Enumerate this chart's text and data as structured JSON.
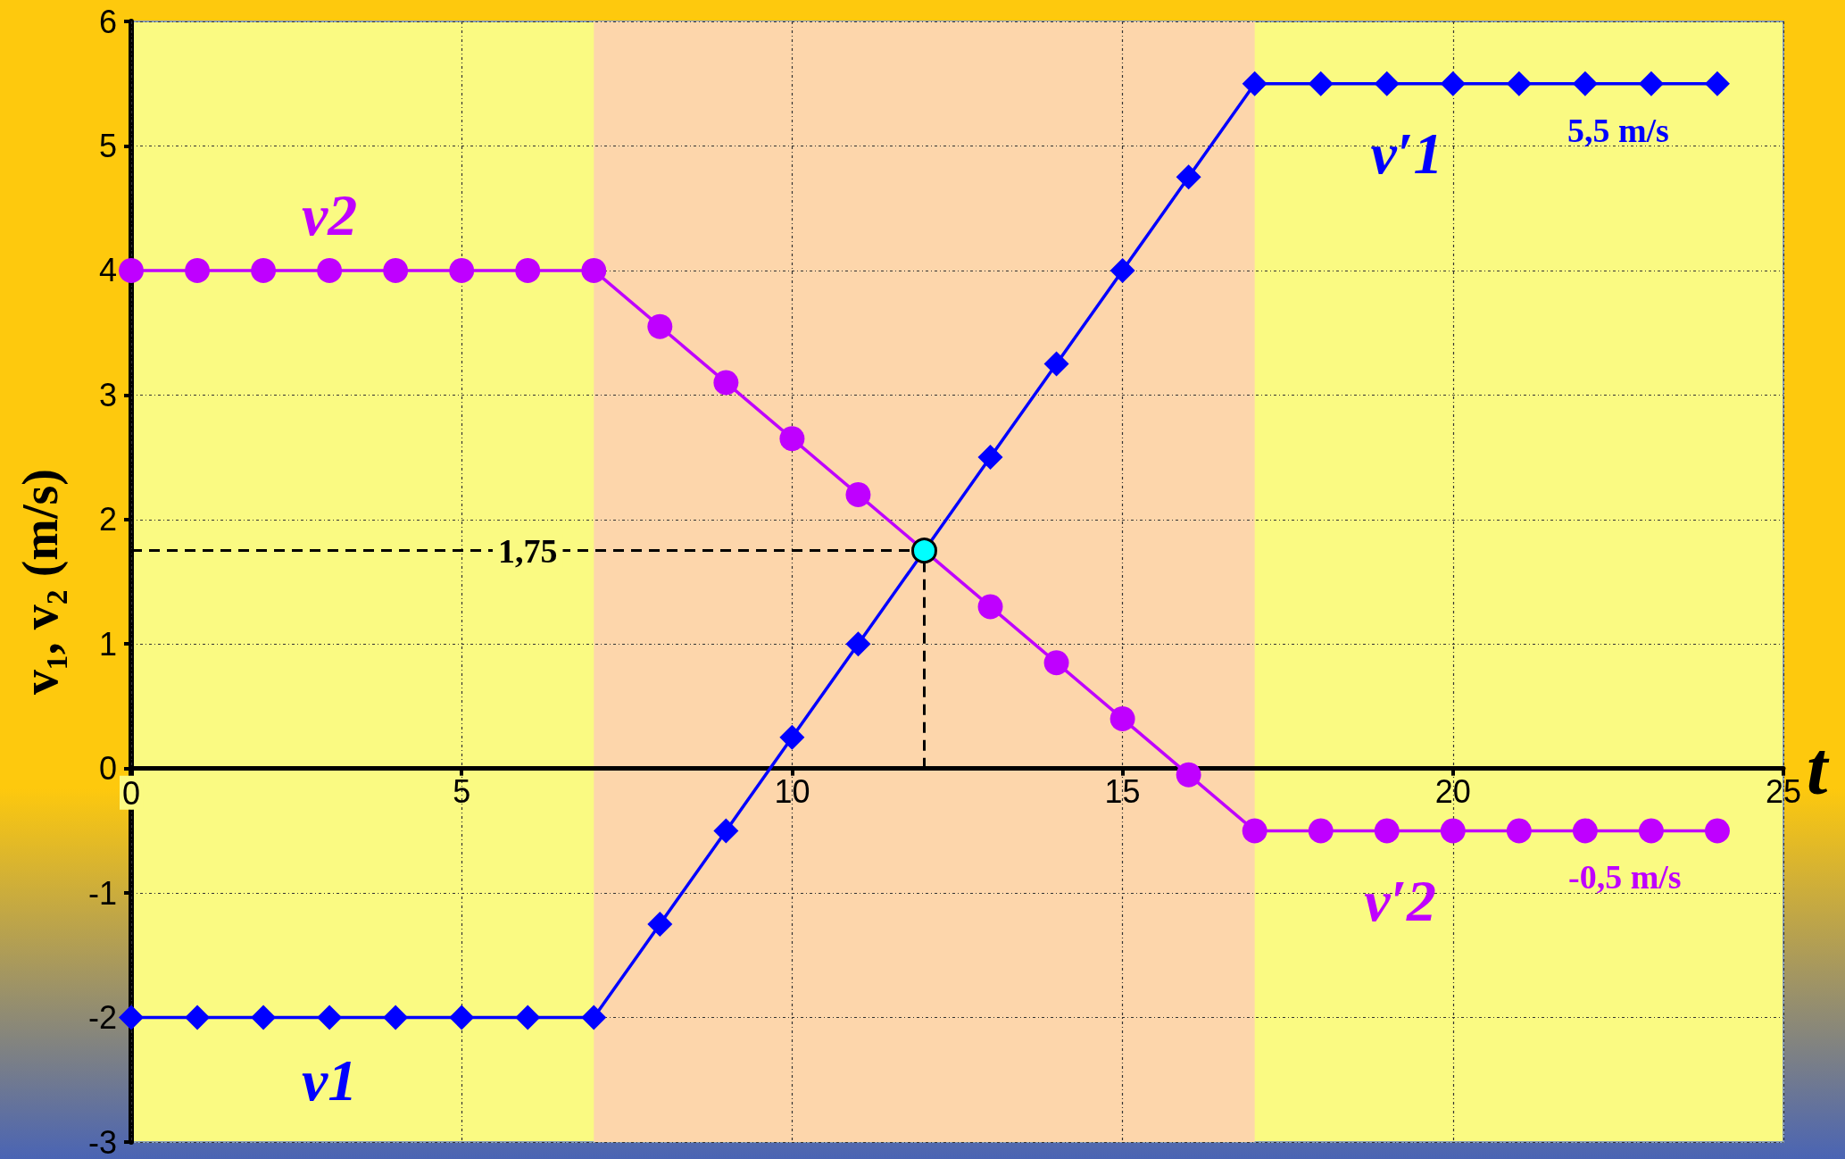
{
  "chart_data": {
    "type": "line",
    "xlabel": "t",
    "ylabel": "v₁, v₂ (m/s)",
    "xlim": [
      0,
      25
    ],
    "xticks": [
      0,
      5,
      10,
      15,
      20,
      25
    ],
    "ylim": [
      -3,
      6
    ],
    "yticks": [
      -3,
      -2,
      -1,
      0,
      1,
      2,
      3,
      4,
      5,
      6
    ],
    "grid": true,
    "legend": false,
    "series": [
      {
        "name": "v1",
        "color": "#0000ff",
        "marker": "diamond",
        "x": [
          0,
          1,
          2,
          3,
          4,
          5,
          6,
          7,
          8,
          9,
          10,
          11,
          13,
          14,
          15,
          16,
          17,
          18,
          19,
          20,
          21,
          22,
          23,
          24
        ],
        "values": [
          -2,
          -2,
          -2,
          -2,
          -2,
          -2,
          -2,
          -2,
          -1.25,
          -0.5,
          0.25,
          1,
          2.5,
          3.25,
          4,
          4.75,
          5.5,
          5.5,
          5.5,
          5.5,
          5.5,
          5.5,
          5.5,
          5.5
        ]
      },
      {
        "name": "v2",
        "color": "#bf00ff",
        "marker": "circle",
        "x": [
          0,
          1,
          2,
          3,
          4,
          5,
          6,
          7,
          8,
          9,
          10,
          11,
          13,
          14,
          15,
          16,
          17,
          18,
          19,
          20,
          21,
          22,
          23,
          24
        ],
        "values": [
          4,
          4,
          4,
          4,
          4,
          4,
          4,
          4,
          3.55,
          3.1,
          2.65,
          2.2,
          1.3,
          0.85,
          0.4,
          -0.05,
          -0.5,
          -0.5,
          -0.5,
          -0.5,
          -0.5,
          -0.5,
          -0.5,
          -0.5
        ]
      },
      {
        "type": "scatter",
        "color": "#00ffff",
        "marker": "circle",
        "x": [
          12
        ],
        "values": [
          1.75
        ]
      }
    ],
    "bands": [
      {
        "axis": "x",
        "from": 7,
        "to": 17,
        "color": "#fdd6ab"
      }
    ],
    "ref_lines": [
      {
        "axis": "y",
        "value": 1.75,
        "label": "1,75",
        "color": "#000000",
        "line_style": "dashed"
      },
      {
        "axis": "x",
        "value": 12,
        "color": "#000000",
        "line_style": "dashed"
      }
    ],
    "annotations": [
      {
        "text": "v′1",
        "x": 19.3,
        "y": 5.5
      },
      {
        "text": "5,5 m/s",
        "x": 22.5,
        "y": 5.5
      },
      {
        "text": "v′2",
        "x": 19.2,
        "y": -0.5
      },
      {
        "text": "-0,5 m/s",
        "x": 22.6,
        "y": -0.5
      }
    ]
  }
}
